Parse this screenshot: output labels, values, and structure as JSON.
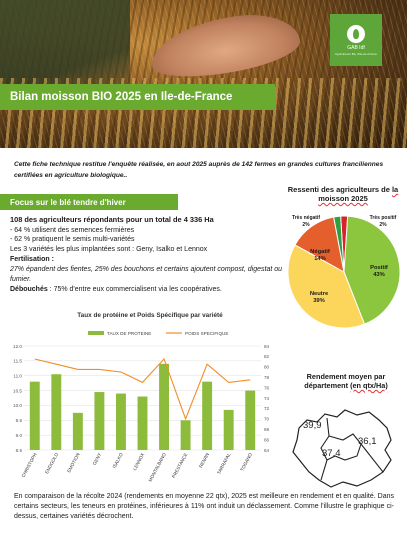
{
  "header": {
    "title": "Bilan moisson BIO 2025 en Ile-de-France",
    "logo": {
      "name": "GAB Idf",
      "subtitle": "Agriculteurs Bio d'Ile-de-France",
      "icon": "leaf-logo-icon"
    }
  },
  "intro": "Cette fiche technique restitue l'enquête réalisée, en aout 2025 auprès de 142 fermes en grandes cultures franciliennes certifiées en agriculture biologique..",
  "section": {
    "title": "Focus sur le blé tendre d'hiver"
  },
  "facts": {
    "lead": "108 des agriculteurs répondants pour un total de 4 336 Ha",
    "line1": "- 64 % utilisent des semences fermières",
    "line2": "- 62 % pratiquent le semis multi-variétés",
    "line3": "Les 3 variétés les plus implantées sont : Geny, Isalko et Lennox",
    "fert_label": "Fertilisation :",
    "fert_text": "27% épandent des fientes, 25% des bouchons et certains ajoutent compost, digestat ou fumier.",
    "deb_label": "Débouchés",
    "deb_text": " : 75% d'entre eux commercialisent via les coopératives."
  },
  "pie": {
    "title_main": "Ressenti des agriculteurs de ",
    "title_u": "la moisson 2025"
  },
  "map": {
    "title_main": "Rendement moyen par département ",
    "title_u": "(en qtx/Ha)",
    "values": [
      "39,9",
      "36,1",
      "37,4"
    ]
  },
  "conclusion": "En comparaison de la récolte 2024 (rendements en moyenne 22 qtx), 2025 est meilleure en rendement et en qualité. Dans certains secteurs, les teneurs en protéines, inférieures à 11% ont induit un déclassement. Comme l'illustre le graphique ci-dessus, certaines variétés décrochent.",
  "colors": {
    "green": "#6aaa2e",
    "bar": "#8dbb3c",
    "line": "#f28c28",
    "pie_positive": "#8cc63f",
    "pie_neutral": "#fbd65a",
    "pie_negative": "#e45f2b",
    "pie_very_negative": "#2f9e44",
    "pie_very_positive": "#d8232a"
  },
  "chart_data": [
    {
      "type": "pie",
      "title": "Ressenti des agriculteurs de la moisson 2025",
      "categories": [
        "Positif",
        "Neutre",
        "Négatif",
        "Très négatif",
        "Très positif"
      ],
      "values": [
        43,
        39,
        14,
        2,
        2
      ],
      "labels": [
        "Positif\n43%",
        "Neutre\n39%",
        "Négatif\n14%",
        "Très négatif\n2%",
        "Très positif\n2%"
      ]
    },
    {
      "type": "bar",
      "title": "Taux de protéine et Poids Spécifique par variété",
      "categories": [
        "CHRISTOPH",
        "ENDGOLD",
        "EMOTION",
        "GENY",
        "ISALKO",
        "LENNOX",
        "MONTALBANO",
        "PRESTANCE",
        "RENAN",
        "TARRAFAL",
        "TOGANO"
      ],
      "series": [
        {
          "name": "TAUX DE PROTEINE",
          "type": "bar",
          "axis": "left",
          "values": [
            10.8,
            11.05,
            9.75,
            10.45,
            10.4,
            10.3,
            11.4,
            9.5,
            10.8,
            9.85,
            10.5
          ]
        },
        {
          "name": "POIDS SPECIFIQUE",
          "type": "line",
          "axis": "right",
          "values": [
            81.5,
            80.5,
            79.5,
            79.5,
            79,
            77,
            81.5,
            70,
            80.5,
            77,
            77.5
          ]
        }
      ],
      "ylim_left": [
        8.5,
        12.0
      ],
      "yticks_left": [
        "8.5",
        "9.0",
        "9.5",
        "10.0",
        "10.5",
        "11.0",
        "11.5",
        "12.0"
      ],
      "ylim_right": [
        64,
        84
      ],
      "yticks_right": [
        "64",
        "66",
        "68",
        "70",
        "72",
        "74",
        "76",
        "78",
        "80",
        "82",
        "84"
      ],
      "legend": "top-center"
    }
  ]
}
